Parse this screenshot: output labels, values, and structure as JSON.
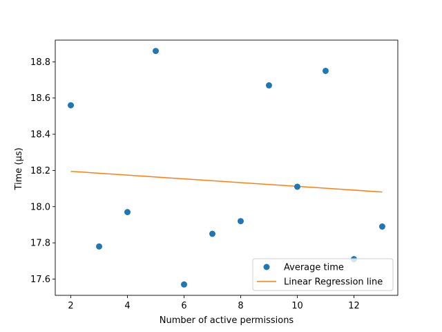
{
  "chart_data": {
    "type": "scatter",
    "xlabel": "Number of active permissions",
    "ylabel": "Time (µs)",
    "xlim": [
      1.45,
      13.55
    ],
    "ylim": [
      17.51,
      18.92
    ],
    "xticks": [
      2,
      4,
      6,
      8,
      10,
      12
    ],
    "yticks": [
      17.6,
      17.8,
      18.0,
      18.2,
      18.4,
      18.6,
      18.8
    ],
    "xtick_labels": [
      "2",
      "4",
      "6",
      "8",
      "10",
      "12"
    ],
    "ytick_labels": [
      "17.6",
      "17.8",
      "18.0",
      "18.2",
      "18.4",
      "18.6",
      "18.8"
    ],
    "grid": false,
    "legend_position": "lower-right",
    "series": [
      {
        "name": "Average time",
        "kind": "scatter",
        "color": "#1f77b4",
        "x": [
          2,
          3,
          4,
          5,
          6,
          7,
          8,
          9,
          10,
          11,
          12,
          13
        ],
        "y": [
          18.56,
          17.78,
          17.97,
          18.86,
          17.57,
          17.85,
          17.92,
          18.67,
          18.11,
          18.75,
          17.71,
          17.89
        ]
      },
      {
        "name": "Linear Regression line",
        "kind": "line",
        "color": "#ff7f0e",
        "x": [
          2,
          13
        ],
        "y": [
          18.195,
          18.081
        ]
      }
    ]
  }
}
